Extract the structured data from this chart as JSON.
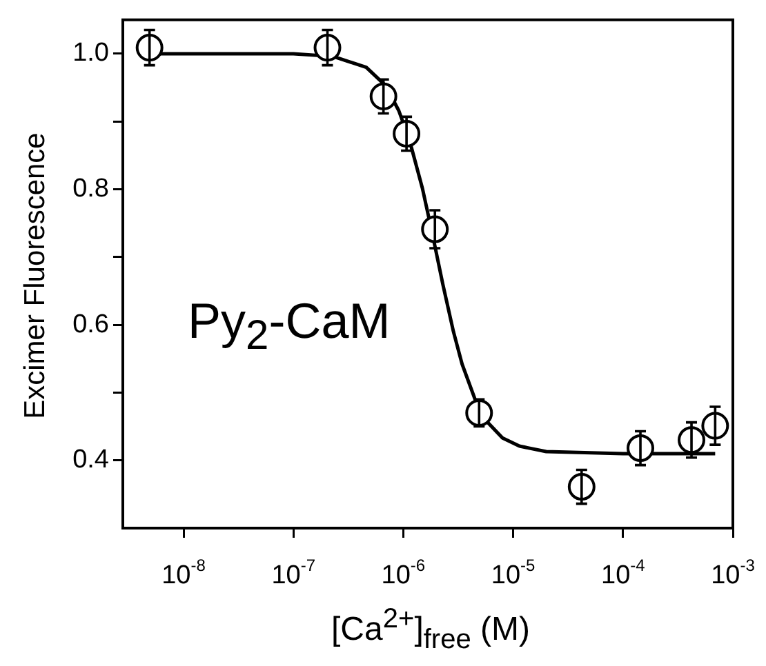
{
  "chart_data": {
    "type": "scatter",
    "xlabel": "[Ca$^{2+}$]$_{free}$ (M)",
    "ylabel": "Excimer Fluorescence",
    "annotations": [
      "Py$_{2}$-CaM"
    ],
    "log": "x",
    "grid": false,
    "legend": false,
    "marker": "circle",
    "xlim": [
      2.8e-09,
      0.001
    ],
    "xticks": [
      {
        "value": 1e-08,
        "label": "10$^{-8}$"
      },
      {
        "value": 1e-07,
        "label": "10$^{-7}$"
      },
      {
        "value": 1e-06,
        "label": "10$^{-6}$"
      },
      {
        "value": 1e-05,
        "label": "10$^{-5}$"
      },
      {
        "value": 0.0001,
        "label": "10$^{-4}$"
      },
      {
        "value": 0.001,
        "label": "10$^{-3}$"
      }
    ],
    "ylim": [
      0.3,
      1.05
    ],
    "yticks": [
      {
        "value": 0.4,
        "label": "0.4"
      },
      {
        "value": 0.5,
        "label": null
      },
      {
        "value": 0.6,
        "label": "0.6"
      },
      {
        "value": 0.7,
        "label": null
      },
      {
        "value": 0.8,
        "label": "0.8"
      },
      {
        "value": 0.9,
        "label": null
      },
      {
        "value": 1,
        "label": "1.0"
      }
    ],
    "series": [
      {
        "type": "scatter",
        "color": "#000000",
        "x": [
          4.9e-09,
          2.04e-07,
          6.6e-07,
          1.07e-06,
          1.94e-06,
          4.9e-06,
          4.2e-05,
          0.000144,
          0.00042,
          0.00069
        ],
        "values": [
          1.009,
          1.009,
          0.937,
          0.882,
          0.741,
          0.47,
          0.361,
          0.418,
          0.43,
          0.451
        ],
        "errors": [
          0.026,
          0.026,
          0.025,
          0.025,
          0.028,
          0.02,
          0.025,
          0.025,
          0.026,
          0.028
        ]
      },
      {
        "type": "line",
        "color": "#000000",
        "marker": "none",
        "line_style": "solid",
        "x": [
          4.9e-09,
          1e-07,
          2.3e-07,
          4.6e-07,
          6.9e-07,
          9.1e-07,
          1.14e-06,
          1.49e-06,
          1.83e-06,
          2.29e-06,
          2.86e-06,
          3.43e-06,
          4.57e-06,
          5.71e-06,
          8e-06,
          1.14e-05,
          2e-05,
          0.0001,
          0.00069
        ],
        "values": [
          1,
          1,
          0.996,
          0.98,
          0.953,
          0.916,
          0.872,
          0.802,
          0.736,
          0.66,
          0.59,
          0.542,
          0.487,
          0.458,
          0.433,
          0.421,
          0.413,
          0.41,
          0.41
        ]
      }
    ]
  }
}
